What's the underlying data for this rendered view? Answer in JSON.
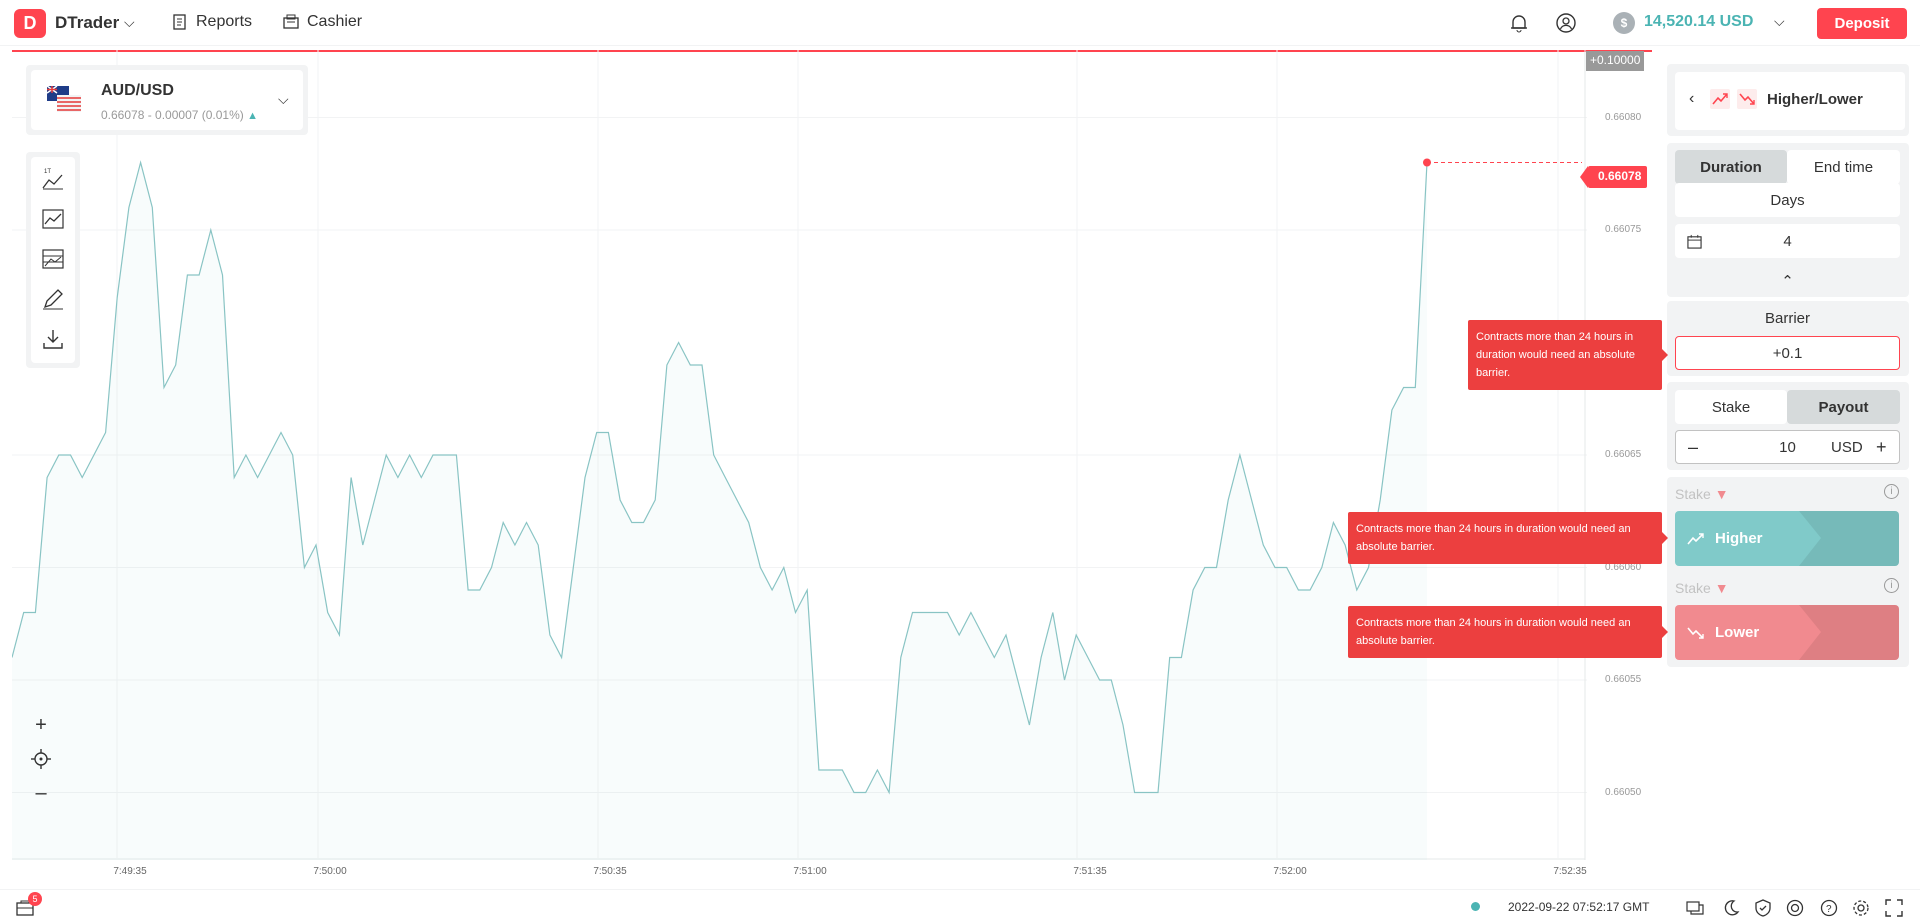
{
  "header": {
    "app_name": "DTrader",
    "nav": [
      {
        "label": "Reports"
      },
      {
        "label": "Cashier"
      }
    ],
    "balance": "14,520.14 USD",
    "currency_symbol": "$",
    "deposit_label": "Deposit"
  },
  "symbol": {
    "name": "AUD/USD",
    "quote": "0.66078 - 0.00007 (0.01%)",
    "trend_icon": "triangle-up"
  },
  "chart_data": {
    "type": "line",
    "series": [
      {
        "values": [
          0.66056,
          0.66058,
          0.66058,
          0.66064,
          0.66065,
          0.66065,
          0.66064,
          0.66065,
          0.66066,
          0.66072,
          0.66076,
          0.66078,
          0.66076,
          0.66068,
          0.66069,
          0.66073,
          0.66073,
          0.66075,
          0.66073,
          0.66064,
          0.66065,
          0.66064,
          0.66065,
          0.66066,
          0.66065,
          0.6606,
          0.66061,
          0.66058,
          0.66057,
          0.66064,
          0.66061,
          0.66063,
          0.66065,
          0.66064,
          0.66065,
          0.66064,
          0.66065,
          0.66065,
          0.66065,
          0.66059,
          0.66059,
          0.6606,
          0.66062,
          0.66061,
          0.66062,
          0.66061,
          0.66057,
          0.66056,
          0.6606,
          0.66064,
          0.66066,
          0.66066,
          0.66063,
          0.66062,
          0.66062,
          0.66063,
          0.66069,
          0.6607,
          0.66069,
          0.66069,
          0.66065,
          0.66064,
          0.66063,
          0.66062,
          0.6606,
          0.66059,
          0.6606,
          0.66058,
          0.66059,
          0.66051,
          0.66051,
          0.66051,
          0.6605,
          0.6605,
          0.66051,
          0.6605,
          0.66056,
          0.66058,
          0.66058,
          0.66058,
          0.66058,
          0.66057,
          0.66058,
          0.66057,
          0.66056,
          0.66057,
          0.66055,
          0.66053,
          0.66056,
          0.66058,
          0.66055,
          0.66057,
          0.66056,
          0.66055,
          0.66055,
          0.66053,
          0.6605,
          0.6605,
          0.6605,
          0.66056,
          0.66056,
          0.66059,
          0.6606,
          0.6606,
          0.66063,
          0.66065,
          0.66063,
          0.66061,
          0.6606,
          0.6606,
          0.66059,
          0.66059,
          0.6606,
          0.66062,
          0.66061,
          0.66059,
          0.6606,
          0.66063,
          0.66067,
          0.66068,
          0.66068,
          0.66078
        ]
      }
    ],
    "x_ticks": [
      "7:49:35",
      "7:50:00",
      "7:50:35",
      "7:51:00",
      "7:51:35",
      "7:52:00",
      "7:52:35"
    ],
    "y_ticks": [
      "0.66080",
      "0.66075",
      "0.66065",
      "0.66060",
      "0.66055",
      "0.66050"
    ],
    "ylim": [
      0.66047,
      0.66083
    ],
    "current_price_label": "0.66078",
    "barrier_label": "+0.10000",
    "line_color": "#89c4c4",
    "marker_color": "#ff444f"
  },
  "panel": {
    "contract_type": "Higher/Lower",
    "duration_tab": "Duration",
    "end_time_tab": "End time",
    "duration_unit": "Days",
    "duration_value": "4",
    "barrier_label": "Barrier",
    "barrier_value": "+0.1",
    "stake_tab": "Stake",
    "payout_tab": "Payout",
    "amount": "10",
    "currency": "USD",
    "stake_label_1": "Stake",
    "stake_label_2": "Stake",
    "higher_label": "Higher",
    "lower_label": "Lower",
    "colors": {
      "higher": "#80cac9",
      "lower": "#f18a8f",
      "accent": "#ff444f"
    }
  },
  "tooltips": {
    "barrier": "Contracts more than 24 hours in duration would need an absolute barrier.",
    "higher": "Contracts more than 24 hours in duration would need an absolute barrier.",
    "lower": "Contracts more than 24 hours in duration would need an absolute barrier."
  },
  "footer": {
    "notification_count": "5",
    "timestamp": "2022-09-22 07:52:17 GMT"
  }
}
